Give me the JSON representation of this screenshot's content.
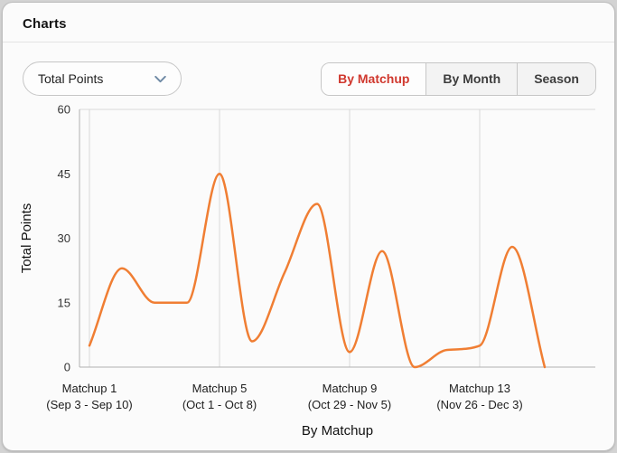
{
  "header": {
    "title": "Charts"
  },
  "controls": {
    "metric_dropdown": {
      "value": "Total Points",
      "icon": "chevron-down-icon"
    },
    "view_tabs": [
      {
        "label": "By Matchup",
        "active": true
      },
      {
        "label": "By Month",
        "active": false
      },
      {
        "label": "Season",
        "active": false
      }
    ]
  },
  "colors": {
    "line": "#F07E33",
    "active_tab_text": "#D0382E",
    "chevron": "#6F8AA5",
    "axis": "#B0B0B0",
    "grid": "#D8D8D8",
    "tick_text": "#333333",
    "axis_title_text": "#111111"
  },
  "chart_data": {
    "type": "line",
    "title": "",
    "xlabel": "By Matchup",
    "ylabel": "Total Points",
    "x": [
      1,
      2,
      3,
      4,
      5,
      6,
      7,
      8,
      9,
      10,
      11,
      12,
      13,
      14,
      15
    ],
    "values": [
      5,
      23,
      15,
      15,
      45,
      6,
      22,
      38,
      3.5,
      27,
      0,
      4,
      5,
      28,
      0
    ],
    "ylim": [
      0,
      60
    ],
    "yticks": [
      0,
      15,
      30,
      45,
      60
    ],
    "xticks": [
      {
        "x": 1,
        "label": "Matchup 1",
        "sublabel": "(Sep 3 - Sep 10)"
      },
      {
        "x": 5,
        "label": "Matchup 5",
        "sublabel": "(Oct 1 - Oct 8)"
      },
      {
        "x": 9,
        "label": "Matchup 9",
        "sublabel": "(Oct 29 - Nov 5)"
      },
      {
        "x": 13,
        "label": "Matchup 13",
        "sublabel": "(Nov 26 - Dec 3)"
      }
    ],
    "grid": {
      "horizontal": "top-only",
      "vertical": "at-xticks"
    },
    "legend": "none",
    "smooth": true,
    "line_color": "#F07E33"
  }
}
